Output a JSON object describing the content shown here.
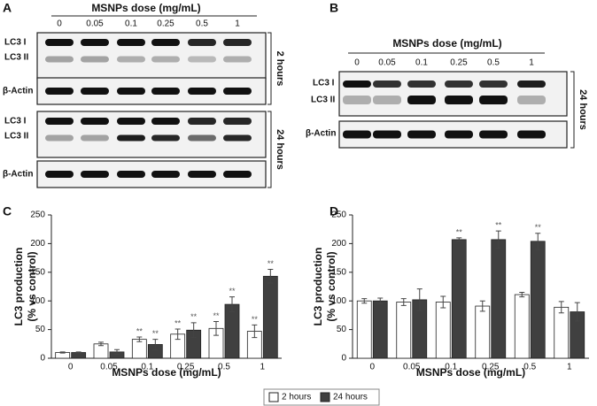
{
  "blots": {
    "A": {
      "label": "A",
      "title": "MSNPs dose (mg/mL)",
      "doses": [
        "0",
        "0.05",
        "0.1",
        "0.25",
        "0.5",
        "1"
      ],
      "rows": [
        "LC3 I",
        "LC3 II",
        "β-Actin"
      ],
      "times": [
        "2 hours",
        "24 hours"
      ]
    },
    "B": {
      "label": "B",
      "title": "MSNPs dose (mg/mL)",
      "doses": [
        "0",
        "0.05",
        "0.1",
        "0.25",
        "0.5",
        "1"
      ],
      "rows": [
        "LC3 I",
        "LC3 II",
        "β-Actin"
      ],
      "times": [
        "24 hours"
      ]
    }
  },
  "chart_data": [
    {
      "type": "bar",
      "label": "C",
      "xlabel": "MSNPs dose (mg/mL)",
      "ylabel": [
        "LC3 production",
        "(% vs control)"
      ],
      "categories": [
        "0",
        "0.05",
        "0.1",
        "0.25",
        "0.5",
        "1"
      ],
      "ylim": [
        0,
        250
      ],
      "yticks": [
        0,
        50,
        100,
        150,
        200,
        250
      ],
      "series": [
        {
          "name": "2 hours",
          "color": "#ffffff",
          "values": [
            10,
            25,
            33,
            42,
            52,
            47
          ],
          "errors": [
            1,
            3,
            4,
            9,
            12,
            11
          ],
          "significance": [
            null,
            null,
            "**",
            "**",
            "**",
            "**"
          ]
        },
        {
          "name": "24 hours",
          "color": "#404040",
          "values": [
            10,
            11,
            24,
            49,
            94,
            143
          ],
          "errors": [
            1,
            4,
            9,
            13,
            13,
            12
          ],
          "significance": [
            null,
            null,
            "**",
            "**",
            "**",
            "**"
          ]
        }
      ]
    },
    {
      "type": "bar",
      "label": "D",
      "xlabel": "MSNPs dose (mg/mL)",
      "ylabel": [
        "LC3 production",
        "(% vs control)"
      ],
      "categories": [
        "0",
        "0.05",
        "0.1",
        "0.25",
        "0.5",
        "1"
      ],
      "ylim": [
        0,
        250
      ],
      "yticks": [
        0,
        50,
        100,
        150,
        200,
        250
      ],
      "series": [
        {
          "color": "#ffffff",
          "values": [
            100,
            98,
            98,
            91,
            111,
            89
          ],
          "errors": [
            4,
            6,
            10,
            9,
            4,
            10
          ]
        },
        {
          "color": "#404040",
          "values": [
            100,
            102,
            207,
            207,
            204,
            81
          ],
          "errors": [
            5,
            19,
            3,
            15,
            14,
            16
          ],
          "significance": [
            null,
            null,
            "**",
            "**",
            "**",
            null
          ]
        }
      ]
    }
  ]
}
